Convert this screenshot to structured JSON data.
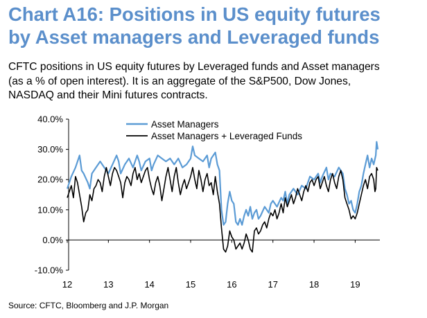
{
  "header": {
    "title_line1": "Chart A16: Positions in US equity futures",
    "title_line2": "by Asset managers and Leveraged funds",
    "subtitle_line1": "CFTC positions in US equity futures by Leveraged funds and Asset managers",
    "subtitle_line2": "(as a % of open interest). It is an aggregate of the S&P500, Dow Jones,",
    "subtitle_line3": "NASDAQ and their Mini futures contracts."
  },
  "source": "Source:  CFTC, Bloomberg and J.P. Morgan",
  "colors": {
    "series1": "#5b9bd5",
    "series2": "#000000",
    "title": "#5b8fcb"
  },
  "chart_data": {
    "type": "line",
    "grid": false,
    "legend_placement": "top-center",
    "xlim": [
      2012,
      2019.6
    ],
    "ylim": [
      -10,
      40
    ],
    "x_ticks": [
      {
        "value": 2012,
        "label": "12"
      },
      {
        "value": 2013,
        "label": "13"
      },
      {
        "value": 2014,
        "label": "14"
      },
      {
        "value": 2015,
        "label": "15"
      },
      {
        "value": 2016,
        "label": "16"
      },
      {
        "value": 2017,
        "label": "17"
      },
      {
        "value": 2018,
        "label": "18"
      },
      {
        "value": 2019,
        "label": "19"
      }
    ],
    "y_ticks": [
      {
        "value": 40,
        "label": "40.0%"
      },
      {
        "value": 30,
        "label": "30.0%"
      },
      {
        "value": 20,
        "label": "20.0%"
      },
      {
        "value": 10,
        "label": "10.0%"
      },
      {
        "value": 0,
        "label": "0.0%"
      },
      {
        "value": -10,
        "label": "-10.0%"
      }
    ],
    "series": [
      {
        "name": "Asset Managers",
        "color": "#5b9bd5",
        "points": [
          [
            2012.0,
            17
          ],
          [
            2012.1,
            21
          ],
          [
            2012.2,
            24
          ],
          [
            2012.3,
            28
          ],
          [
            2012.35,
            23
          ],
          [
            2012.4,
            22
          ],
          [
            2012.5,
            19
          ],
          [
            2012.55,
            17
          ],
          [
            2012.6,
            22
          ],
          [
            2012.7,
            24
          ],
          [
            2012.8,
            26
          ],
          [
            2012.9,
            24
          ],
          [
            2013.0,
            22
          ],
          [
            2013.1,
            25
          ],
          [
            2013.2,
            28
          ],
          [
            2013.25,
            26
          ],
          [
            2013.3,
            22
          ],
          [
            2013.4,
            25
          ],
          [
            2013.5,
            27
          ],
          [
            2013.6,
            24
          ],
          [
            2013.7,
            28
          ],
          [
            2013.75,
            26
          ],
          [
            2013.8,
            23
          ],
          [
            2013.9,
            26
          ],
          [
            2014.0,
            27
          ],
          [
            2014.05,
            23
          ],
          [
            2014.1,
            25
          ],
          [
            2014.2,
            28
          ],
          [
            2014.3,
            27
          ],
          [
            2014.4,
            26
          ],
          [
            2014.5,
            27
          ],
          [
            2014.6,
            25
          ],
          [
            2014.7,
            27
          ],
          [
            2014.8,
            24
          ],
          [
            2014.9,
            25
          ],
          [
            2015.0,
            27
          ],
          [
            2015.05,
            31
          ],
          [
            2015.1,
            28
          ],
          [
            2015.2,
            27
          ],
          [
            2015.3,
            26
          ],
          [
            2015.4,
            28
          ],
          [
            2015.45,
            24
          ],
          [
            2015.5,
            27
          ],
          [
            2015.6,
            29
          ],
          [
            2015.65,
            25
          ],
          [
            2015.7,
            23
          ],
          [
            2015.75,
            10
          ],
          [
            2015.8,
            5
          ],
          [
            2015.85,
            6
          ],
          [
            2015.9,
            12
          ],
          [
            2015.95,
            16
          ],
          [
            2016.0,
            13
          ],
          [
            2016.05,
            12
          ],
          [
            2016.1,
            6
          ],
          [
            2016.15,
            5
          ],
          [
            2016.2,
            7
          ],
          [
            2016.25,
            5
          ],
          [
            2016.3,
            8
          ],
          [
            2016.35,
            10
          ],
          [
            2016.4,
            8
          ],
          [
            2016.45,
            11
          ],
          [
            2016.5,
            7
          ],
          [
            2016.55,
            9
          ],
          [
            2016.6,
            10
          ],
          [
            2016.65,
            7
          ],
          [
            2016.7,
            8
          ],
          [
            2016.8,
            11
          ],
          [
            2016.9,
            9
          ],
          [
            2016.95,
            12
          ],
          [
            2017.0,
            13
          ],
          [
            2017.1,
            11
          ],
          [
            2017.2,
            14
          ],
          [
            2017.25,
            13
          ],
          [
            2017.3,
            16
          ],
          [
            2017.35,
            12
          ],
          [
            2017.4,
            15
          ],
          [
            2017.5,
            17
          ],
          [
            2017.6,
            15
          ],
          [
            2017.7,
            18
          ],
          [
            2017.8,
            17
          ],
          [
            2017.9,
            21
          ],
          [
            2018.0,
            20
          ],
          [
            2018.1,
            22
          ],
          [
            2018.15,
            19
          ],
          [
            2018.2,
            21
          ],
          [
            2018.3,
            24
          ],
          [
            2018.35,
            20
          ],
          [
            2018.4,
            22
          ],
          [
            2018.5,
            21
          ],
          [
            2018.6,
            24
          ],
          [
            2018.7,
            22
          ],
          [
            2018.75,
            17
          ],
          [
            2018.8,
            15
          ],
          [
            2018.85,
            12
          ],
          [
            2018.9,
            13
          ],
          [
            2018.95,
            10
          ],
          [
            2019.0,
            9
          ],
          [
            2019.05,
            12
          ],
          [
            2019.1,
            16
          ],
          [
            2019.15,
            18
          ],
          [
            2019.2,
            22
          ],
          [
            2019.25,
            25
          ],
          [
            2019.3,
            28
          ],
          [
            2019.35,
            24
          ],
          [
            2019.4,
            27
          ],
          [
            2019.45,
            25
          ],
          [
            2019.5,
            28
          ],
          [
            2019.52,
            32.5
          ],
          [
            2019.55,
            30
          ]
        ]
      },
      {
        "name": "Asset Managers + Leveraged Funds",
        "color": "#000000",
        "points": [
          [
            2012.0,
            14
          ],
          [
            2012.05,
            16
          ],
          [
            2012.1,
            18
          ],
          [
            2012.15,
            14
          ],
          [
            2012.2,
            21
          ],
          [
            2012.25,
            19
          ],
          [
            2012.3,
            15
          ],
          [
            2012.35,
            11
          ],
          [
            2012.4,
            6
          ],
          [
            2012.45,
            9
          ],
          [
            2012.5,
            10
          ],
          [
            2012.55,
            15
          ],
          [
            2012.6,
            13
          ],
          [
            2012.65,
            17
          ],
          [
            2012.7,
            18
          ],
          [
            2012.75,
            20
          ],
          [
            2012.8,
            19
          ],
          [
            2012.85,
            16
          ],
          [
            2012.9,
            21
          ],
          [
            2012.95,
            24
          ],
          [
            2013.0,
            21
          ],
          [
            2013.05,
            18
          ],
          [
            2013.1,
            22
          ],
          [
            2013.15,
            24
          ],
          [
            2013.2,
            23
          ],
          [
            2013.25,
            21
          ],
          [
            2013.3,
            19
          ],
          [
            2013.35,
            14
          ],
          [
            2013.4,
            19
          ],
          [
            2013.45,
            21
          ],
          [
            2013.5,
            20
          ],
          [
            2013.55,
            18
          ],
          [
            2013.6,
            22
          ],
          [
            2013.65,
            24
          ],
          [
            2013.7,
            20
          ],
          [
            2013.75,
            22
          ],
          [
            2013.8,
            19
          ],
          [
            2013.85,
            21
          ],
          [
            2013.9,
            23
          ],
          [
            2013.95,
            24
          ],
          [
            2014.0,
            20
          ],
          [
            2014.05,
            17
          ],
          [
            2014.1,
            15
          ],
          [
            2014.15,
            19
          ],
          [
            2014.2,
            21
          ],
          [
            2014.25,
            18
          ],
          [
            2014.3,
            13
          ],
          [
            2014.35,
            17
          ],
          [
            2014.4,
            21
          ],
          [
            2014.45,
            24
          ],
          [
            2014.5,
            20
          ],
          [
            2014.55,
            16
          ],
          [
            2014.6,
            21
          ],
          [
            2014.65,
            24
          ],
          [
            2014.7,
            19
          ],
          [
            2014.75,
            15
          ],
          [
            2014.8,
            18
          ],
          [
            2014.85,
            20
          ],
          [
            2014.9,
            17
          ],
          [
            2014.95,
            19
          ],
          [
            2015.0,
            21
          ],
          [
            2015.05,
            24
          ],
          [
            2015.1,
            20
          ],
          [
            2015.15,
            17
          ],
          [
            2015.2,
            23
          ],
          [
            2015.25,
            20
          ],
          [
            2015.3,
            16
          ],
          [
            2015.35,
            20
          ],
          [
            2015.4,
            22
          ],
          [
            2015.45,
            18
          ],
          [
            2015.5,
            19
          ],
          [
            2015.55,
            15
          ],
          [
            2015.6,
            21
          ],
          [
            2015.65,
            16
          ],
          [
            2015.7,
            12
          ],
          [
            2015.75,
            4
          ],
          [
            2015.8,
            -3
          ],
          [
            2015.85,
            -4
          ],
          [
            2015.9,
            -2
          ],
          [
            2015.95,
            3
          ],
          [
            2016.0,
            1
          ],
          [
            2016.05,
            0
          ],
          [
            2016.1,
            -3
          ],
          [
            2016.15,
            -2
          ],
          [
            2016.2,
            -1
          ],
          [
            2016.25,
            -3
          ],
          [
            2016.3,
            -1
          ],
          [
            2016.35,
            2
          ],
          [
            2016.4,
            0
          ],
          [
            2016.45,
            -3
          ],
          [
            2016.5,
            -4
          ],
          [
            2016.55,
            3
          ],
          [
            2016.6,
            4
          ],
          [
            2016.65,
            2
          ],
          [
            2016.7,
            3
          ],
          [
            2016.75,
            5
          ],
          [
            2016.8,
            6
          ],
          [
            2016.85,
            4
          ],
          [
            2016.9,
            7
          ],
          [
            2016.95,
            9
          ],
          [
            2017.0,
            8
          ],
          [
            2017.05,
            10
          ],
          [
            2017.1,
            7
          ],
          [
            2017.15,
            9
          ],
          [
            2017.2,
            12
          ],
          [
            2017.25,
            9
          ],
          [
            2017.3,
            14
          ],
          [
            2017.35,
            11
          ],
          [
            2017.4,
            13
          ],
          [
            2017.45,
            15
          ],
          [
            2017.5,
            12
          ],
          [
            2017.55,
            14
          ],
          [
            2017.6,
            17
          ],
          [
            2017.65,
            15
          ],
          [
            2017.7,
            13
          ],
          [
            2017.75,
            16
          ],
          [
            2017.8,
            18
          ],
          [
            2017.85,
            16
          ],
          [
            2017.9,
            19
          ],
          [
            2017.95,
            20
          ],
          [
            2018.0,
            18
          ],
          [
            2018.05,
            20
          ],
          [
            2018.1,
            21
          ],
          [
            2018.15,
            17
          ],
          [
            2018.2,
            19
          ],
          [
            2018.25,
            21
          ],
          [
            2018.3,
            18
          ],
          [
            2018.35,
            16
          ],
          [
            2018.4,
            20
          ],
          [
            2018.45,
            22
          ],
          [
            2018.5,
            19
          ],
          [
            2018.55,
            17
          ],
          [
            2018.6,
            21
          ],
          [
            2018.65,
            23
          ],
          [
            2018.7,
            20
          ],
          [
            2018.75,
            14
          ],
          [
            2018.8,
            12
          ],
          [
            2018.85,
            10
          ],
          [
            2018.9,
            7
          ],
          [
            2018.95,
            8
          ],
          [
            2019.0,
            7
          ],
          [
            2019.05,
            9
          ],
          [
            2019.1,
            12
          ],
          [
            2019.15,
            15
          ],
          [
            2019.2,
            18
          ],
          [
            2019.25,
            20
          ],
          [
            2019.3,
            17
          ],
          [
            2019.35,
            21
          ],
          [
            2019.4,
            22
          ],
          [
            2019.45,
            20
          ],
          [
            2019.48,
            16
          ],
          [
            2019.5,
            17
          ],
          [
            2019.52,
            24
          ],
          [
            2019.55,
            23
          ]
        ]
      }
    ]
  }
}
